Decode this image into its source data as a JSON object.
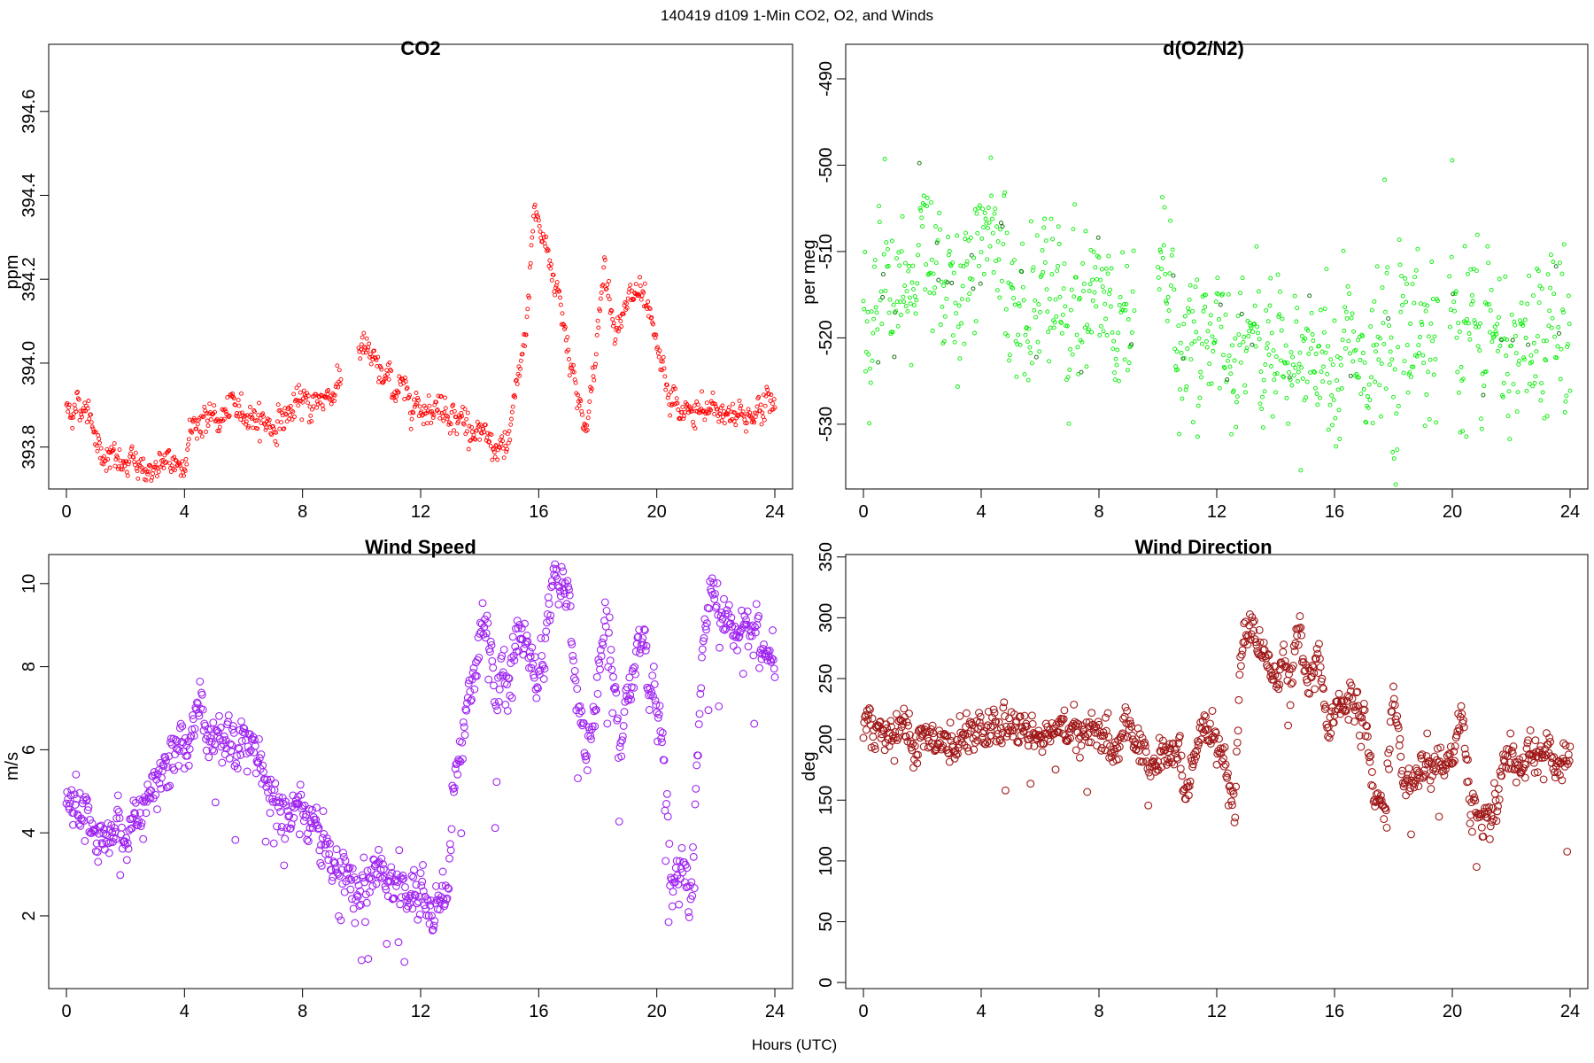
{
  "figure": {
    "title": "140419   d109   1-Min CO2, O2, and Winds",
    "xlabel": "Hours (UTC)"
  },
  "chart_data": [
    {
      "id": "co2",
      "type": "scatter",
      "title": "CO2",
      "ylabel": "ppm",
      "color": "#ff0000",
      "marker_size": "small",
      "xlim": [
        -0.5,
        24.5
      ],
      "ylim": [
        393.7,
        394.76
      ],
      "x_ticks": [
        0,
        4,
        8,
        12,
        16,
        20,
        24
      ],
      "y_ticks": [
        393.8,
        394.0,
        394.2,
        394.4,
        394.6
      ],
      "y_tick_labels": [
        "393.8",
        "394.0",
        "394.2",
        "394.4",
        "394.6"
      ],
      "key_points": [
        [
          0,
          393.89
        ],
        [
          0.5,
          393.9
        ],
        [
          0.9,
          393.88
        ],
        [
          1.0,
          393.81
        ],
        [
          1.5,
          393.77
        ],
        [
          2.0,
          393.75
        ],
        [
          2.5,
          393.76
        ],
        [
          3.0,
          393.74
        ],
        [
          3.5,
          393.76
        ],
        [
          3.9,
          393.76
        ],
        [
          4.2,
          393.84
        ],
        [
          4.6,
          393.87
        ],
        [
          5.0,
          393.86
        ],
        [
          5.5,
          393.88
        ],
        [
          6.0,
          393.89
        ],
        [
          6.5,
          393.87
        ],
        [
          7.0,
          393.85
        ],
        [
          7.5,
          393.88
        ],
        [
          8.0,
          393.9
        ],
        [
          8.5,
          393.91
        ],
        [
          9.0,
          393.93
        ],
        [
          9.2,
          393.96
        ],
        [
          10.0,
          394.05
        ],
        [
          10.5,
          393.98
        ],
        [
          11.0,
          393.95
        ],
        [
          11.5,
          393.93
        ],
        [
          12.0,
          393.9
        ],
        [
          12.5,
          393.9
        ],
        [
          13.0,
          393.89
        ],
        [
          13.5,
          393.86
        ],
        [
          14.0,
          393.82
        ],
        [
          14.9,
          393.78
        ],
        [
          15.3,
          393.95
        ],
        [
          15.6,
          394.1
        ],
        [
          15.85,
          394.38
        ],
        [
          16.1,
          394.3
        ],
        [
          16.5,
          394.22
        ],
        [
          16.8,
          394.12
        ],
        [
          17.1,
          394.0
        ],
        [
          17.4,
          393.9
        ],
        [
          17.6,
          393.84
        ],
        [
          17.9,
          393.98
        ],
        [
          18.2,
          394.25
        ],
        [
          18.5,
          394.12
        ],
        [
          18.8,
          394.1
        ],
        [
          19.3,
          394.17
        ],
        [
          19.5,
          394.15
        ],
        [
          20.1,
          394.0
        ],
        [
          20.4,
          393.92
        ],
        [
          20.8,
          393.88
        ],
        [
          21.2,
          393.88
        ],
        [
          21.6,
          393.88
        ],
        [
          22.0,
          393.89
        ],
        [
          22.5,
          393.88
        ],
        [
          23.0,
          393.87
        ],
        [
          23.5,
          393.9
        ],
        [
          23.9,
          393.9
        ]
      ],
      "gaps": [
        [
          9.3,
          9.9
        ]
      ]
    },
    {
      "id": "o2",
      "type": "scatter",
      "title": "d(O2/N2)",
      "ylabel": "per meg",
      "color": "#00ee00",
      "marker_size": "small",
      "xlim": [
        -0.5,
        24.5
      ],
      "ylim": [
        -537.5,
        -486
      ],
      "x_ticks": [
        0,
        4,
        8,
        12,
        16,
        20,
        24
      ],
      "y_ticks": [
        -530,
        -520,
        -510,
        -500,
        -490
      ],
      "y_tick_labels": [
        "-530",
        "-520",
        "-510",
        "-500",
        "-490"
      ],
      "key_points": [
        [
          0.0,
          -515
        ],
        [
          1.0,
          -514
        ],
        [
          2.0,
          -513
        ],
        [
          3.0,
          -511
        ],
        [
          4.0,
          -510
        ],
        [
          5.0,
          -512
        ],
        [
          6.0,
          -514
        ],
        [
          7.0,
          -517
        ],
        [
          8.0,
          -518
        ],
        [
          9.0,
          -520
        ],
        [
          10.5,
          -520
        ],
        [
          12.0,
          -521
        ],
        [
          13.0,
          -522
        ],
        [
          14.0,
          -520
        ],
        [
          15.0,
          -521
        ],
        [
          16.0,
          -522
        ],
        [
          17.0,
          -523
        ],
        [
          18.0,
          -521
        ],
        [
          19.0,
          -519
        ],
        [
          20.0,
          -520
        ],
        [
          21.0,
          -522
        ],
        [
          22.0,
          -521
        ],
        [
          23.0,
          -519
        ],
        [
          24.0,
          -519
        ]
      ],
      "gaps": [
        [
          9.2,
          10.0
        ],
        [
          19.5,
          19.9
        ]
      ]
    },
    {
      "id": "ws",
      "type": "scatter",
      "title": "Wind Speed",
      "ylabel": "m/s",
      "color": "#9e23f0",
      "marker_size": "large",
      "xlim": [
        -0.5,
        24.5
      ],
      "ylim": [
        0.25,
        10.7
      ],
      "x_ticks": [
        0,
        4,
        8,
        12,
        16,
        20,
        24
      ],
      "y_ticks": [
        2,
        4,
        6,
        8,
        10
      ],
      "y_tick_labels": [
        "2",
        "4",
        "6",
        "8",
        "10"
      ],
      "key_points": [
        [
          0.0,
          5.0
        ],
        [
          0.5,
          4.3
        ],
        [
          1.0,
          4.0
        ],
        [
          1.5,
          4.0
        ],
        [
          2.0,
          4.1
        ],
        [
          2.5,
          4.7
        ],
        [
          3.0,
          5.2
        ],
        [
          3.5,
          5.8
        ],
        [
          4.0,
          6.5
        ],
        [
          4.5,
          6.8
        ],
        [
          5.0,
          6.0
        ],
        [
          5.5,
          6.2
        ],
        [
          6.0,
          6.5
        ],
        [
          6.5,
          5.9
        ],
        [
          7.0,
          5.1
        ],
        [
          7.5,
          4.6
        ],
        [
          8.0,
          4.4
        ],
        [
          8.5,
          4.0
        ],
        [
          9.0,
          3.7
        ],
        [
          9.5,
          3.0
        ],
        [
          10.0,
          2.8
        ],
        [
          10.5,
          3.2
        ],
        [
          11.0,
          2.8
        ],
        [
          11.5,
          2.6
        ],
        [
          12.0,
          2.4
        ],
        [
          12.5,
          2.0
        ],
        [
          12.9,
          2.8
        ],
        [
          13.2,
          5.7
        ],
        [
          13.6,
          7.5
        ],
        [
          14.0,
          8.8
        ],
        [
          14.5,
          7.3
        ],
        [
          15.0,
          8.3
        ],
        [
          15.5,
          8.5
        ],
        [
          16.0,
          7.8
        ],
        [
          16.5,
          9.5
        ],
        [
          17.0,
          9.8
        ],
        [
          17.3,
          7.5
        ],
        [
          17.6,
          5.6
        ],
        [
          17.9,
          6.8
        ],
        [
          18.3,
          9.3
        ],
        [
          18.7,
          6.5
        ],
        [
          19.1,
          7.6
        ],
        [
          19.6,
          8.6
        ],
        [
          20.0,
          7.0
        ],
        [
          20.2,
          6.5
        ],
        [
          20.5,
          3.2
        ],
        [
          20.8,
          2.9
        ],
        [
          21.2,
          2.7
        ],
        [
          21.5,
          7.8
        ],
        [
          21.8,
          9.8
        ],
        [
          22.3,
          9.0
        ],
        [
          23.0,
          8.8
        ],
        [
          23.5,
          8.6
        ],
        [
          23.9,
          8.3
        ]
      ],
      "gaps": []
    },
    {
      "id": "wd",
      "type": "scatter",
      "title": "Wind Direction",
      "ylabel": "deg",
      "color": "#a01818",
      "marker_size": "large",
      "xlim": [
        -0.5,
        24.5
      ],
      "ylim": [
        -5,
        352
      ],
      "x_ticks": [
        0,
        4,
        8,
        12,
        16,
        20,
        24
      ],
      "y_ticks": [
        0,
        50,
        100,
        150,
        200,
        250,
        300,
        350
      ],
      "y_tick_labels": [
        "0",
        "50",
        "100",
        "150",
        "200",
        "250",
        "300",
        "350"
      ],
      "key_points": [
        [
          0.0,
          208
        ],
        [
          0.5,
          202
        ],
        [
          1.0,
          198
        ],
        [
          2.0,
          202
        ],
        [
          3.0,
          206
        ],
        [
          4.0,
          211
        ],
        [
          5.0,
          212
        ],
        [
          6.0,
          209
        ],
        [
          7.0,
          208
        ],
        [
          7.5,
          210
        ],
        [
          8.0,
          205
        ],
        [
          8.5,
          190
        ],
        [
          9.0,
          210
        ],
        [
          9.5,
          190
        ],
        [
          10.0,
          175
        ],
        [
          10.5,
          190
        ],
        [
          11.0,
          165
        ],
        [
          11.5,
          200
        ],
        [
          12.0,
          200
        ],
        [
          12.3,
          170
        ],
        [
          12.6,
          130
        ],
        [
          12.8,
          265
        ],
        [
          13.1,
          300
        ],
        [
          13.5,
          270
        ],
        [
          14.0,
          250
        ],
        [
          14.5,
          255
        ],
        [
          14.8,
          295
        ],
        [
          15.0,
          235
        ],
        [
          15.5,
          265
        ],
        [
          15.8,
          215
        ],
        [
          16.3,
          228
        ],
        [
          17.0,
          228
        ],
        [
          17.3,
          160
        ],
        [
          17.7,
          130
        ],
        [
          18.0,
          240
        ],
        [
          18.3,
          170
        ],
        [
          19.0,
          175
        ],
        [
          19.5,
          180
        ],
        [
          20.0,
          180
        ],
        [
          20.3,
          220
        ],
        [
          20.6,
          150
        ],
        [
          21.0,
          130
        ],
        [
          21.5,
          145
        ],
        [
          21.8,
          185
        ],
        [
          22.5,
          185
        ],
        [
          23.5,
          185
        ],
        [
          23.9,
          188
        ]
      ],
      "gaps": []
    }
  ]
}
